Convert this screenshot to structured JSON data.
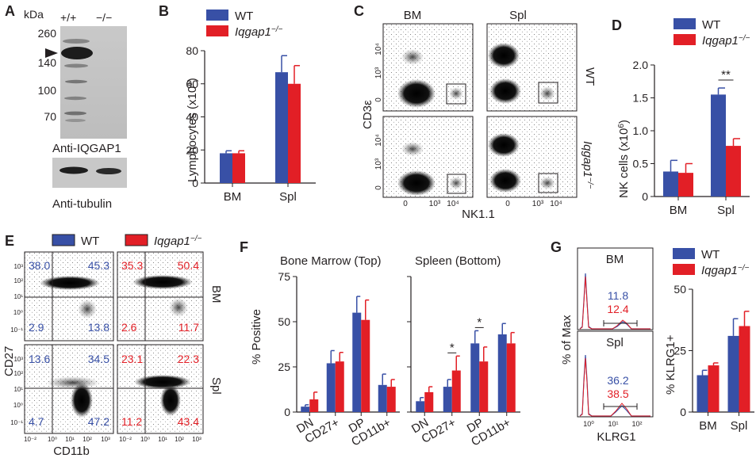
{
  "figure": {
    "panel_labels": [
      "A",
      "B",
      "C",
      "D",
      "E",
      "F",
      "G"
    ],
    "colors": {
      "wt": "#3850a6",
      "ko": "#e21f26",
      "axis": "#231f20"
    },
    "ko_label": "Iqgap1",
    "ko_sup": "−/−",
    "wt_label": "WT"
  },
  "panel_a": {
    "kda": "kDa",
    "lanes": [
      "+/+",
      "−/−"
    ],
    "markers": [
      "260",
      "140",
      "100",
      "70"
    ],
    "blot1_label": "Anti-IQGAP1",
    "blot2_label": "Anti-tubulin"
  },
  "panel_b": {
    "ylabel": "Lymphocytes (x10",
    "ylabel_sup": "6",
    "ylabel_end": ")"
  },
  "panel_c": {
    "cols": [
      "BM",
      "Spl"
    ],
    "rows": [
      "WT",
      "Iqgap1"
    ],
    "ylabel": "CD3ε",
    "xlabel": "NK1.1",
    "ticks": [
      "0",
      "10³",
      "10⁴"
    ]
  },
  "panel_d": {
    "ylabel": "NK cells (x10",
    "ylabel_sup": "6",
    "ylabel_end": ")",
    "sig": "**"
  },
  "panel_e": {
    "xlabel": "CD11b",
    "ylabel": "CD27",
    "rows": [
      "BM",
      "Spl"
    ],
    "xticks": [
      "10⁻²",
      "10⁰",
      "10¹",
      "10²",
      "10³"
    ],
    "yticks": [
      "10³",
      "10²",
      "10¹",
      "10⁰",
      "10⁻¹"
    ],
    "quadrants": {
      "wt_bm": [
        "38.0",
        "45.3",
        "2.9",
        "13.8"
      ],
      "ko_bm": [
        "35.3",
        "50.4",
        "2.6",
        "11.7"
      ],
      "wt_spl": [
        "13.6",
        "34.5",
        "4.7",
        "47.2"
      ],
      "ko_spl": [
        "23.1",
        "22.3",
        "11.2",
        "43.4"
      ]
    }
  },
  "panel_f": {
    "ylabel": "% Positive",
    "title_left": "Bone Marrow (Top)",
    "title_right": "Spleen (Bottom)",
    "sig": "*"
  },
  "panel_g": {
    "hist_ylabel": "% of Max",
    "hist_xlabel": "KLRG1",
    "hist_titles": [
      "BM",
      "Spl"
    ],
    "bm_values": [
      "11.8",
      "12.4"
    ],
    "spl_values": [
      "36.2",
      "38.5"
    ],
    "hist_ticks": [
      "10⁰",
      "10¹",
      "10²"
    ],
    "ylabel": "% KLRG1+"
  },
  "chart_data": [
    {
      "panel": "B",
      "type": "bar",
      "categories": [
        "BM",
        "Spl"
      ],
      "series": [
        {
          "name": "WT",
          "values": [
            18,
            67
          ],
          "errors": [
            1.5,
            10
          ]
        },
        {
          "name": "Iqgap1−/−",
          "values": [
            18,
            60
          ],
          "errors": [
            1.5,
            11
          ]
        }
      ],
      "ylim": [
        0,
        80
      ],
      "yticks": [
        0,
        20,
        40,
        60,
        80
      ],
      "ylabel": "Lymphocytes (x10⁶)"
    },
    {
      "panel": "D",
      "type": "bar",
      "categories": [
        "BM",
        "Spl"
      ],
      "series": [
        {
          "name": "WT",
          "values": [
            0.38,
            1.55
          ],
          "errors": [
            0.17,
            0.1
          ]
        },
        {
          "name": "Iqgap1−/−",
          "values": [
            0.36,
            0.77
          ],
          "errors": [
            0.14,
            0.11
          ]
        }
      ],
      "ylim": [
        0,
        2.0
      ],
      "yticks": [
        0,
        0.5,
        1.0,
        1.5,
        2.0
      ],
      "yticklabels": [
        "0",
        "0.5",
        "1.0",
        "1.5",
        "2.0"
      ],
      "ylabel": "NK cells (x10⁶)"
    },
    {
      "panel": "F-left",
      "type": "bar",
      "title": "Bone Marrow (Top)",
      "categories": [
        "DN",
        "CD27+",
        "DP",
        "CD11b+"
      ],
      "series": [
        {
          "name": "WT",
          "values": [
            3,
            27,
            55,
            15
          ],
          "errors": [
            1,
            7,
            9,
            6
          ]
        },
        {
          "name": "Iqgap1−/−",
          "values": [
            7,
            28,
            51,
            14
          ],
          "errors": [
            4,
            5,
            11,
            4
          ]
        }
      ],
      "ylim": [
        0,
        75
      ],
      "yticks": [
        0,
        25,
        50,
        75
      ],
      "ylabel": "% Positive"
    },
    {
      "panel": "F-right",
      "type": "bar",
      "title": "Spleen (Bottom)",
      "categories": [
        "DN",
        "CD27+",
        "DP",
        "CD11b+"
      ],
      "series": [
        {
          "name": "WT",
          "values": [
            6,
            14,
            38,
            43
          ],
          "errors": [
            2,
            4,
            7,
            6
          ]
        },
        {
          "name": "Iqgap1−/−",
          "values": [
            11,
            23,
            28,
            38
          ],
          "errors": [
            3,
            8,
            8,
            6
          ]
        }
      ],
      "ylim": [
        0,
        75
      ],
      "yticks": [
        0,
        25,
        50,
        75
      ],
      "significance": [
        "",
        "*",
        "*",
        ""
      ]
    },
    {
      "panel": "G",
      "type": "bar",
      "categories": [
        "BM",
        "Spl"
      ],
      "series": [
        {
          "name": "WT",
          "values": [
            15,
            31
          ],
          "errors": [
            2,
            7
          ]
        },
        {
          "name": "Iqgap1−/−",
          "values": [
            19,
            35
          ],
          "errors": [
            1,
            6
          ]
        }
      ],
      "ylim": [
        0,
        50
      ],
      "yticks": [
        0,
        25,
        50
      ],
      "ylabel": "% KLRG1+"
    }
  ]
}
